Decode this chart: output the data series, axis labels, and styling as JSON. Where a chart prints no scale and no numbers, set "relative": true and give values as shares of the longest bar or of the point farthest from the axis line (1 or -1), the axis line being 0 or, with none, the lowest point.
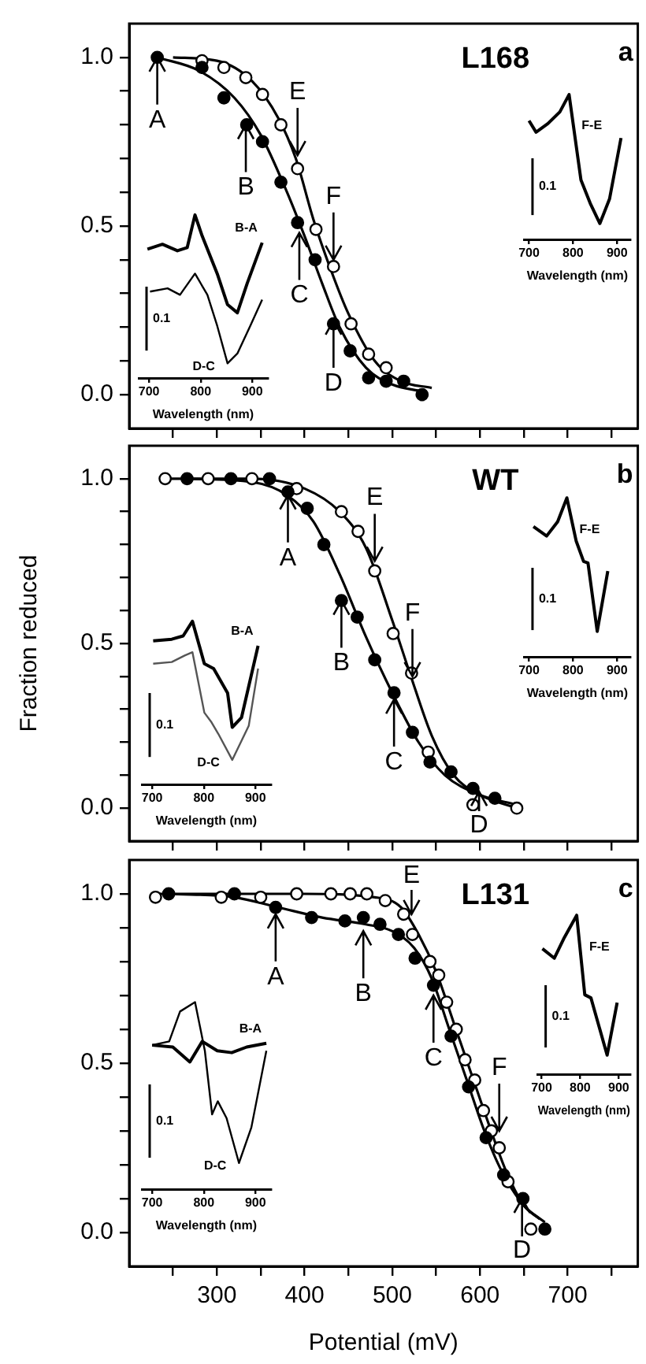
{
  "chart_data": [
    {
      "type": "scatter",
      "title": "L168",
      "subtitle": "a",
      "xlim": [
        200,
        780
      ],
      "xticks": [
        {
          "value": 250,
          "label": null
        },
        300,
        {
          "value": 350,
          "label": null
        },
        400,
        {
          "value": 450,
          "label": null
        },
        500,
        {
          "value": 550,
          "label": null
        },
        600,
        {
          "value": 650,
          "label": null
        },
        700,
        {
          "value": 750,
          "label": null
        }
      ],
      "ylim": [
        -0.1,
        1.1
      ],
      "yticks": [
        {
          "value": 0,
          "label": "0.0"
        },
        {
          "value": 0.1,
          "label": null
        },
        {
          "value": 0.2,
          "label": null
        },
        {
          "value": 0.3,
          "label": null
        },
        {
          "value": 0.4,
          "label": null
        },
        {
          "value": 0.5,
          "label": "0.5"
        },
        {
          "value": 0.6,
          "label": null
        },
        {
          "value": 0.7,
          "label": null
        },
        {
          "value": 0.8,
          "label": null
        },
        {
          "value": 0.9,
          "label": null
        },
        {
          "value": 1,
          "label": "1.0"
        }
      ],
      "tick_labels": "y",
      "marker": "circle",
      "series": [
        {
          "type": "scatter",
          "color": "#000000",
          "x": [
            232,
            283,
            308,
            334,
            352,
            373,
            392,
            412,
            433,
            452,
            473,
            493,
            513,
            534
          ],
          "values": [
            1.0,
            0.97,
            0.88,
            0.8,
            0.75,
            0.63,
            0.51,
            0.4,
            0.21,
            0.13,
            0.05,
            0.04,
            0.04,
            0.0
          ]
        },
        {
          "type": "scatter",
          "color": "#000000",
          "x": [
            283,
            308,
            333,
            352,
            373,
            392,
            413,
            433,
            453,
            473,
            493
          ],
          "values": [
            0.99,
            0.97,
            0.94,
            0.89,
            0.8,
            0.67,
            0.49,
            0.38,
            0.21,
            0.12,
            0.08
          ]
        },
        {
          "type": "line",
          "marker": "none",
          "color": "#000000",
          "x": [
            232,
            280,
            320,
            350,
            380,
            400,
            420,
            440,
            470,
            500,
            534
          ],
          "values": [
            1.0,
            0.96,
            0.88,
            0.77,
            0.6,
            0.47,
            0.33,
            0.2,
            0.08,
            0.03,
            0.01
          ]
        },
        {
          "type": "line",
          "marker": "none",
          "color": "#000000",
          "x": [
            250,
            300,
            340,
            370,
            390,
            410,
            430,
            450,
            480,
            510,
            545
          ],
          "values": [
            1.0,
            0.99,
            0.93,
            0.82,
            0.7,
            0.52,
            0.37,
            0.24,
            0.1,
            0.04,
            0.02
          ]
        }
      ],
      "annotations": [
        {
          "text": "A",
          "x": 232,
          "y": 1.0
        },
        {
          "text": "B",
          "x": 333,
          "y": 0.8
        },
        {
          "text": "C",
          "x": 394,
          "y": 0.48
        },
        {
          "text": "D",
          "x": 433,
          "y": 0.22
        },
        {
          "text": "E",
          "x": 392,
          "y": 0.71
        },
        {
          "text": "F",
          "x": 433,
          "y": 0.4
        }
      ]
    },
    {
      "type": "line",
      "relative": true,
      "xlabel": "Wavelength (nm)",
      "xlim": [
        680,
        930
      ],
      "xticks": [
        700,
        800,
        900
      ],
      "annotations": [
        "0.1"
      ],
      "series": [
        {
          "name": "B-A",
          "color": "#000000",
          "x": [
            697,
            726,
            755,
            774,
            789,
            803,
            832,
            852,
            871,
            890,
            919
          ],
          "values": [
            0.79,
            0.82,
            0.78,
            0.8,
            1.0,
            0.87,
            0.64,
            0.45,
            0.4,
            0.58,
            0.83
          ]
        },
        {
          "name": "D-C",
          "color": "#000000",
          "x": [
            702,
            736,
            760,
            789,
            813,
            832,
            852,
            871,
            896,
            919
          ],
          "values": [
            0.53,
            0.55,
            0.51,
            0.64,
            0.51,
            0.32,
            0.09,
            0.15,
            0.32,
            0.48
          ]
        }
      ]
    },
    {
      "type": "line",
      "relative": true,
      "xlabel": "Wavelength (nm)",
      "xlim": [
        690,
        930
      ],
      "xticks": [
        700,
        800,
        900
      ],
      "annotations": [
        "0.1"
      ],
      "series": [
        {
          "name": "F-E",
          "color": "#000000",
          "x": [
            700,
            716,
            743,
            770,
            791,
            818,
            839,
            861,
            883,
            909
          ],
          "values": [
            0.82,
            0.74,
            0.8,
            0.88,
            1.0,
            0.41,
            0.25,
            0.11,
            0.28,
            0.7
          ]
        }
      ]
    },
    {
      "type": "scatter",
      "title": "WT",
      "subtitle": "b",
      "ylabel": "Fraction reduced",
      "xlim": [
        200,
        780
      ],
      "xticks": [
        {
          "value": 250,
          "label": null
        },
        300,
        {
          "value": 350,
          "label": null
        },
        400,
        {
          "value": 450,
          "label": null
        },
        500,
        {
          "value": 550,
          "label": null
        },
        600,
        {
          "value": 650,
          "label": null
        },
        700,
        {
          "value": 750,
          "label": null
        }
      ],
      "ylim": [
        -0.1,
        1.1
      ],
      "yticks": [
        {
          "value": 0,
          "label": "0.0"
        },
        {
          "value": 0.1,
          "label": null
        },
        {
          "value": 0.2,
          "label": null
        },
        {
          "value": 0.3,
          "label": null
        },
        {
          "value": 0.4,
          "label": null
        },
        {
          "value": 0.5,
          "label": "0.5"
        },
        {
          "value": 0.6,
          "label": null
        },
        {
          "value": 0.7,
          "label": null
        },
        {
          "value": 0.8,
          "label": null
        },
        {
          "value": 0.9,
          "label": null
        },
        {
          "value": 1,
          "label": "1.0"
        }
      ],
      "tick_labels": "y",
      "marker": "circle",
      "series": [
        {
          "type": "scatter",
          "color": "#000000",
          "x": [
            266,
            316,
            360,
            381,
            403,
            422,
            442,
            460,
            480,
            502,
            523,
            543,
            567,
            592,
            617
          ],
          "values": [
            1.0,
            1.0,
            1.0,
            0.96,
            0.91,
            0.8,
            0.63,
            0.58,
            0.45,
            0.35,
            0.23,
            0.14,
            0.11,
            0.06,
            0.03
          ]
        },
        {
          "type": "scatter",
          "color": "#000000",
          "x": [
            241,
            290,
            340,
            391,
            442,
            461,
            480,
            501,
            522,
            541,
            592,
            642
          ],
          "values": [
            1.0,
            1.0,
            1.0,
            0.97,
            0.9,
            0.84,
            0.72,
            0.53,
            0.41,
            0.17,
            0.01,
            0.0
          ]
        },
        {
          "type": "line",
          "marker": "none",
          "color": "#000000",
          "x": [
            266,
            340,
            380,
            410,
            440,
            470,
            500,
            530,
            560,
            600,
            642
          ],
          "values": [
            1.0,
            0.99,
            0.95,
            0.87,
            0.71,
            0.52,
            0.35,
            0.2,
            0.1,
            0.04,
            0.01
          ]
        },
        {
          "type": "line",
          "marker": "none",
          "color": "#000000",
          "x": [
            241,
            340,
            400,
            440,
            470,
            500,
            520,
            545,
            570,
            600,
            642
          ],
          "values": [
            1.0,
            1.0,
            0.97,
            0.9,
            0.79,
            0.57,
            0.41,
            0.22,
            0.1,
            0.04,
            0.0
          ]
        }
      ],
      "annotations": [
        {
          "text": "A",
          "x": 381,
          "y": 0.95
        },
        {
          "text": "B",
          "x": 442,
          "y": 0.63
        },
        {
          "text": "C",
          "x": 502,
          "y": 0.33
        },
        {
          "text": "D",
          "x": 599,
          "y": 0.05
        },
        {
          "text": "E",
          "x": 480,
          "y": 0.75
        },
        {
          "text": "F",
          "x": 523,
          "y": 0.4
        }
      ]
    },
    {
      "type": "line",
      "relative": true,
      "xlabel": "Wavelength (nm)",
      "xlim": [
        680,
        930
      ],
      "xticks": [
        700,
        800,
        900
      ],
      "annotations": [
        "0.1"
      ],
      "series": [
        {
          "name": "B-A",
          "color": "#000000",
          "x": [
            702,
            738,
            760,
            778,
            801,
            819,
            846,
            855,
            873,
            905
          ],
          "values": [
            0.88,
            0.89,
            0.91,
            1.0,
            0.74,
            0.71,
            0.56,
            0.35,
            0.41,
            0.85
          ]
        },
        {
          "name": "D-C",
          "color": "#555555",
          "x": [
            702,
            738,
            763,
            778,
            801,
            815,
            828,
            855,
            887,
            905
          ],
          "values": [
            0.74,
            0.75,
            0.79,
            0.81,
            0.44,
            0.38,
            0.31,
            0.15,
            0.36,
            0.71
          ]
        }
      ]
    },
    {
      "type": "line",
      "relative": true,
      "xlabel": "Wavelength (nm)",
      "xlim": [
        690,
        930
      ],
      "xticks": [
        700,
        800,
        900
      ],
      "annotations": [
        "0.1"
      ],
      "series": [
        {
          "name": "F-E",
          "color": "#000000",
          "x": [
            710,
            740,
            765,
            786,
            807,
            824,
            834,
            855,
            879
          ],
          "values": [
            0.82,
            0.76,
            0.85,
            1.0,
            0.73,
            0.6,
            0.59,
            0.16,
            0.54
          ]
        }
      ]
    },
    {
      "type": "scatter",
      "title": "L131",
      "subtitle": "c",
      "xlabel": "Potential (mV)",
      "xlim": [
        200,
        780
      ],
      "xticks": [
        {
          "value": 250,
          "label": null
        },
        300,
        {
          "value": 350,
          "label": null
        },
        400,
        {
          "value": 450,
          "label": null
        },
        500,
        {
          "value": 550,
          "label": null
        },
        600,
        {
          "value": 650,
          "label": null
        },
        700,
        {
          "value": 750,
          "label": null
        }
      ],
      "ylim": [
        -0.1,
        1.1
      ],
      "yticks": [
        {
          "value": 0,
          "label": "0.0"
        },
        {
          "value": 0.1,
          "label": null
        },
        {
          "value": 0.2,
          "label": null
        },
        {
          "value": 0.3,
          "label": null
        },
        {
          "value": 0.4,
          "label": null
        },
        {
          "value": 0.5,
          "label": "0.5"
        },
        {
          "value": 0.6,
          "label": null
        },
        {
          "value": 0.7,
          "label": null
        },
        {
          "value": 0.8,
          "label": null
        },
        {
          "value": 0.9,
          "label": null
        },
        {
          "value": 1,
          "label": "1.0"
        }
      ],
      "marker": "circle",
      "series": [
        {
          "type": "scatter",
          "color": "#000000",
          "x": [
            245,
            320,
            367,
            408,
            446,
            467,
            486,
            507,
            526,
            547,
            567,
            587,
            607,
            627,
            649,
            674
          ],
          "values": [
            1.0,
            1.0,
            0.96,
            0.93,
            0.92,
            0.93,
            0.91,
            0.88,
            0.81,
            0.73,
            0.58,
            0.43,
            0.28,
            0.17,
            0.1,
            0.01
          ]
        },
        {
          "type": "scatter",
          "color": "#000000",
          "x": [
            230,
            305,
            350,
            391,
            430,
            452,
            471,
            492,
            513,
            523,
            543,
            553,
            562,
            573,
            583,
            594,
            604,
            613,
            622,
            632,
            658
          ],
          "values": [
            0.99,
            0.99,
            0.99,
            1.0,
            1.0,
            1.0,
            1.0,
            0.98,
            0.94,
            0.88,
            0.8,
            0.76,
            0.68,
            0.6,
            0.51,
            0.45,
            0.36,
            0.3,
            0.25,
            0.15,
            0.01
          ]
        },
        {
          "type": "line",
          "marker": "none",
          "color": "#000000",
          "x": [
            245,
            320,
            370,
            420,
            470,
            500,
            525,
            545,
            565,
            585,
            605,
            625,
            650,
            674
          ],
          "values": [
            1.0,
            0.99,
            0.96,
            0.93,
            0.91,
            0.89,
            0.84,
            0.75,
            0.6,
            0.45,
            0.3,
            0.18,
            0.08,
            0.03
          ]
        },
        {
          "type": "line",
          "marker": "none",
          "color": "#000000",
          "x": [
            230,
            400,
            480,
            510,
            530,
            550,
            570,
            590,
            610,
            630,
            650,
            668
          ],
          "values": [
            1.0,
            1.0,
            0.99,
            0.96,
            0.88,
            0.77,
            0.62,
            0.47,
            0.32,
            0.18,
            0.08,
            0.04
          ]
        }
      ],
      "annotations": [
        {
          "text": "A",
          "x": 367,
          "y": 0.94
        },
        {
          "text": "B",
          "x": 467,
          "y": 0.89
        },
        {
          "text": "C",
          "x": 547,
          "y": 0.7
        },
        {
          "text": "D",
          "x": 648,
          "y": 0.1
        },
        {
          "text": "E",
          "x": 522,
          "y": 0.94
        },
        {
          "text": "F",
          "x": 622,
          "y": 0.3
        }
      ]
    },
    {
      "type": "line",
      "relative": true,
      "xlabel": "Wavelength (nm)",
      "xlim": [
        680,
        930
      ],
      "xticks": [
        700,
        800,
        900
      ],
      "annotations": [
        "0.1"
      ],
      "series": [
        {
          "name": "B-A",
          "color": "#000000",
          "x": [
            700,
            740,
            773,
            797,
            826,
            854,
            883,
            921
          ],
          "values": [
            0.77,
            0.76,
            0.68,
            0.79,
            0.74,
            0.73,
            0.76,
            0.78
          ]
        },
        {
          "name": "D-C",
          "color": "#000000",
          "x": [
            700,
            733,
            754,
            783,
            802,
            816,
            827,
            844,
            868,
            892,
            921
          ],
          "values": [
            0.77,
            0.79,
            0.95,
            1.0,
            0.74,
            0.4,
            0.47,
            0.38,
            0.14,
            0.33,
            0.74
          ]
        }
      ]
    },
    {
      "type": "line",
      "relative": true,
      "xlabel": "Wavelength (nm)",
      "xlim": [
        690,
        930
      ],
      "xticks": [
        700,
        800,
        900
      ],
      "annotations": [
        "0.1"
      ],
      "series": [
        {
          "name": "F-E",
          "color": "#000000",
          "x": [
            702,
            733,
            759,
            791,
            812,
            828,
            870,
            896
          ],
          "values": [
            0.79,
            0.73,
            0.86,
            1.0,
            0.5,
            0.48,
            0.12,
            0.45
          ]
        }
      ]
    }
  ]
}
